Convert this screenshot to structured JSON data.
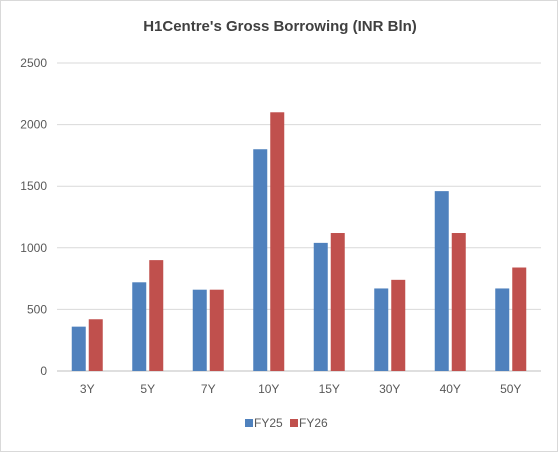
{
  "chart_data": {
    "type": "bar",
    "title": "H1Centre's Gross Borrowing (INR Bln)",
    "xlabel": "",
    "ylabel": "",
    "categories": [
      "3Y",
      "5Y",
      "7Y",
      "10Y",
      "15Y",
      "30Y",
      "40Y",
      "50Y"
    ],
    "series": [
      {
        "name": "FY25",
        "color": "#4f81bd",
        "values": [
          360,
          720,
          660,
          1800,
          1040,
          670,
          1460,
          670
        ]
      },
      {
        "name": "FY26",
        "color": "#c0504d",
        "values": [
          420,
          900,
          660,
          2100,
          1120,
          740,
          1120,
          840
        ]
      }
    ],
    "ylim": [
      0,
      2500
    ],
    "yticks": [
      "0",
      "500",
      "1000",
      "1500",
      "2000",
      "2500"
    ],
    "grid": true,
    "legend_position": "bottom"
  }
}
